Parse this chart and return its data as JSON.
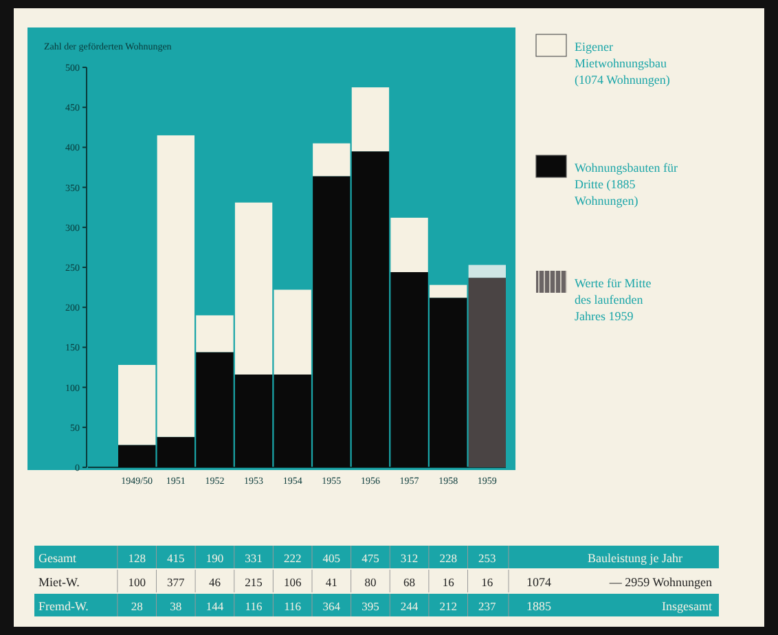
{
  "chart_data": {
    "type": "bar",
    "stacked": true,
    "ylabel": "Zahl der geförderten Wohnungen",
    "categories": [
      "1949/50",
      "1951",
      "1952",
      "1953",
      "1954",
      "1955",
      "1956",
      "1957",
      "1958",
      "1959"
    ],
    "series": [
      {
        "name": "Wohnungsbauten für Dritte (1885 Wohnungen)",
        "color": "#0a0a0a",
        "colors": [
          "#0a0a0a",
          "#0a0a0a",
          "#0a0a0a",
          "#0a0a0a",
          "#0a0a0a",
          "#0a0a0a",
          "#0a0a0a",
          "#0a0a0a",
          "#0a0a0a",
          "#4a4444"
        ],
        "values": [
          28,
          38,
          144,
          116,
          116,
          364,
          395,
          244,
          212,
          237
        ]
      },
      {
        "name": "Eigener Mietwohnungsbau (1074 Wohnungen)",
        "color": "#f6f1e2",
        "colors": [
          "#f6f1e2",
          "#f6f1e2",
          "#f6f1e2",
          "#f6f1e2",
          "#f6f1e2",
          "#f6f1e2",
          "#f6f1e2",
          "#f6f1e2",
          "#f6f1e2",
          "#cfe6e4"
        ],
        "values": [
          100,
          377,
          46,
          215,
          106,
          41,
          80,
          68,
          16,
          16
        ]
      }
    ],
    "ylim": [
      0,
      500
    ],
    "yticks": [
      0,
      50,
      100,
      150,
      200,
      250,
      300,
      350,
      400,
      450,
      500
    ],
    "legend": "right",
    "data_labels": true,
    "annotations": [
      "Gesamt",
      "Miet-W.",
      "Fremd-W.",
      "Werte für Mitte des laufenden Jahres 1959",
      "Bauleistung je Jahr",
      "1074",
      "— 2959 Wohnungen",
      "1885",
      "Insgesamt",
      "128",
      "415",
      "190",
      "331",
      "222",
      "405",
      "475",
      "312",
      "228",
      "253"
    ]
  }
}
